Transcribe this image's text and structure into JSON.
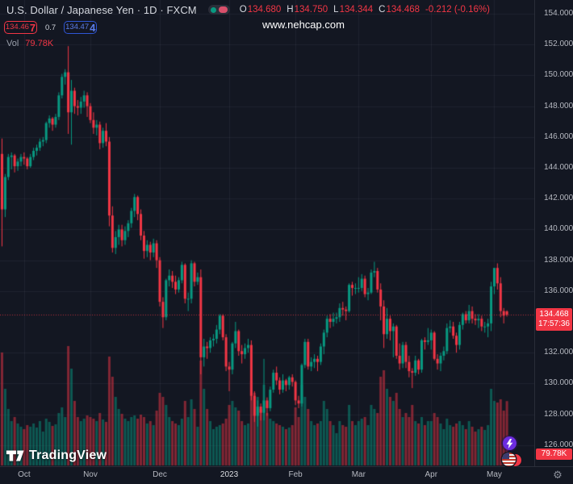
{
  "header": {
    "symbol_title": "U.S. Dollar / Japanese Yen · 1D · FXCM",
    "ohlc": {
      "o_label": "O",
      "o": "134.680",
      "h_label": "H",
      "h": "134.750",
      "l_label": "L",
      "l": "134.344",
      "c_label": "C",
      "c": "134.468",
      "change": "-0.212 (-0.16%)"
    },
    "sell": {
      "main": "134.46",
      "big": "7"
    },
    "spread": "0.7",
    "buy": {
      "main": "134.47",
      "big": "4"
    },
    "vol": {
      "label": "Vol",
      "value": "79.78K"
    }
  },
  "watermark": {
    "text": "www.nehcap.com"
  },
  "price_axis": {
    "last_price_label": "134.468",
    "countdown": "17:57:36",
    "volume_badge": "79.78K"
  },
  "logo": {
    "text": "TradingView"
  },
  "icons": {
    "gear": "⚙",
    "lightning": "lightning-bolt",
    "flag": "us-flag"
  },
  "colors": {
    "background": "#131722",
    "up": "#089981",
    "down": "#f23645",
    "buy_blue": "#3a62d8",
    "purple": "#6c2ce0",
    "grid": "rgba(240,243,250,0.055)",
    "axis_text": "#b6b9c1"
  },
  "chart_data": {
    "type": "candlestick+volume",
    "symbol": "USDJPY",
    "title": "U.S. Dollar / Japanese Yen",
    "timeframe": "1D",
    "exchange": "FXCM",
    "legend_position": "top-left",
    "grid": true,
    "last_price": 134.468,
    "last_change": -0.212,
    "last_change_pct": -0.16,
    "y_ticks": [
      "154.000",
      "152.000",
      "150.000",
      "148.000",
      "146.000",
      "144.000",
      "142.000",
      "140.000",
      "138.000",
      "136.000",
      "132.000",
      "130.000",
      "128.000",
      "126.000"
    ],
    "ylim": [
      125.5,
      154.8
    ],
    "x_ticks": [
      {
        "label": "Oct",
        "index": 7
      },
      {
        "label": "Nov",
        "index": 28
      },
      {
        "label": "Dec",
        "index": 50
      },
      {
        "label": "2023",
        "index": 72,
        "year": true
      },
      {
        "label": "Feb",
        "index": 93
      },
      {
        "label": "Mar",
        "index": 113
      },
      {
        "label": "Apr",
        "index": 136
      },
      {
        "label": "May",
        "index": 156
      }
    ],
    "candles_format": [
      "open",
      "high",
      "low",
      "close",
      "volume_k"
    ],
    "candles": [
      [
        144.9,
        145.9,
        138.9,
        141.3,
        140
      ],
      [
        141.3,
        143.6,
        140.8,
        143.4,
        95
      ],
      [
        143.4,
        144.9,
        143.2,
        144.7,
        70
      ],
      [
        144.7,
        145.0,
        143.9,
        144.8,
        55
      ],
      [
        144.8,
        144.9,
        143.7,
        144.1,
        60
      ],
      [
        144.1,
        144.6,
        143.8,
        144.4,
        52
      ],
      [
        144.4,
        144.9,
        144.1,
        144.7,
        48
      ],
      [
        144.7,
        145.0,
        144.2,
        144.6,
        45
      ],
      [
        144.6,
        144.7,
        143.9,
        144.1,
        50
      ],
      [
        144.1,
        144.9,
        144.0,
        144.7,
        48
      ],
      [
        144.7,
        145.3,
        144.5,
        145.1,
        52
      ],
      [
        145.1,
        145.5,
        144.8,
        145.3,
        47
      ],
      [
        145.3,
        145.9,
        145.1,
        145.7,
        55
      ],
      [
        145.7,
        146.0,
        145.4,
        145.8,
        42
      ],
      [
        145.8,
        147.0,
        145.6,
        146.9,
        58
      ],
      [
        146.9,
        147.4,
        146.6,
        147.2,
        54
      ],
      [
        147.2,
        147.3,
        146.4,
        146.8,
        49
      ],
      [
        146.8,
        147.5,
        146.6,
        147.3,
        51
      ],
      [
        147.3,
        148.9,
        147.1,
        148.7,
        65
      ],
      [
        148.7,
        150.1,
        148.5,
        149.9,
        72
      ],
      [
        149.9,
        150.4,
        149.4,
        150.2,
        60
      ],
      [
        150.2,
        151.9,
        146.2,
        147.6,
        148
      ],
      [
        147.6,
        149.7,
        145.5,
        149.0,
        120
      ],
      [
        149.0,
        149.2,
        147.5,
        148.0,
        80
      ],
      [
        148.0,
        148.4,
        147.4,
        147.9,
        60
      ],
      [
        147.9,
        148.6,
        147.5,
        148.3,
        55
      ],
      [
        148.3,
        149.0,
        147.9,
        148.7,
        58
      ],
      [
        148.7,
        148.9,
        147.3,
        148.0,
        62
      ],
      [
        148.0,
        148.2,
        146.9,
        147.1,
        60
      ],
      [
        147.1,
        147.6,
        146.2,
        146.6,
        58
      ],
      [
        146.6,
        147.1,
        146.1,
        146.8,
        55
      ],
      [
        146.8,
        147.0,
        145.2,
        145.6,
        65
      ],
      [
        145.6,
        146.6,
        145.3,
        146.4,
        57
      ],
      [
        146.4,
        146.9,
        145.4,
        145.7,
        54
      ],
      [
        145.7,
        146.0,
        140.2,
        140.9,
        135
      ],
      [
        140.9,
        141.5,
        138.5,
        138.8,
        110
      ],
      [
        138.8,
        139.9,
        138.4,
        139.5,
        85
      ],
      [
        139.5,
        140.3,
        139.0,
        140.0,
        70
      ],
      [
        140.0,
        140.3,
        138.9,
        139.3,
        64
      ],
      [
        139.3,
        140.2,
        139.0,
        139.9,
        58
      ],
      [
        139.9,
        140.6,
        139.5,
        140.4,
        55
      ],
      [
        140.4,
        141.4,
        140.1,
        141.2,
        60
      ],
      [
        141.2,
        142.3,
        140.8,
        142.1,
        62
      ],
      [
        142.1,
        142.2,
        140.6,
        141.0,
        58
      ],
      [
        141.0,
        141.3,
        139.3,
        139.6,
        63
      ],
      [
        139.6,
        139.9,
        138.1,
        138.6,
        60
      ],
      [
        138.6,
        139.3,
        138.2,
        139.0,
        52
      ],
      [
        139.0,
        139.2,
        138.0,
        138.5,
        55
      ],
      [
        138.5,
        139.4,
        138.2,
        139.1,
        50
      ],
      [
        139.1,
        139.3,
        137.5,
        138.0,
        68
      ],
      [
        138.0,
        138.2,
        135.0,
        135.3,
        90
      ],
      [
        135.3,
        135.6,
        133.6,
        134.3,
        85
      ],
      [
        134.3,
        136.8,
        134.1,
        136.7,
        75
      ],
      [
        136.7,
        137.4,
        136.3,
        137.0,
        60
      ],
      [
        137.0,
        137.3,
        136.2,
        136.6,
        55
      ],
      [
        136.6,
        137.0,
        135.8,
        136.1,
        52
      ],
      [
        136.1,
        136.9,
        135.9,
        136.7,
        50
      ],
      [
        136.7,
        137.9,
        136.5,
        137.7,
        58
      ],
      [
        137.7,
        137.8,
        135.2,
        135.5,
        80
      ],
      [
        135.5,
        135.9,
        134.7,
        135.5,
        60
      ],
      [
        135.5,
        138.0,
        135.2,
        137.8,
        82
      ],
      [
        137.8,
        137.9,
        136.3,
        136.6,
        70
      ],
      [
        136.6,
        137.2,
        136.4,
        136.9,
        48
      ],
      [
        136.9,
        137.4,
        130.6,
        131.7,
        130
      ],
      [
        131.7,
        132.9,
        131.1,
        132.4,
        95
      ],
      [
        132.4,
        132.7,
        131.6,
        132.3,
        70
      ],
      [
        132.3,
        133.0,
        132.0,
        132.8,
        55
      ],
      [
        132.8,
        133.2,
        132.4,
        132.9,
        45
      ],
      [
        132.9,
        133.8,
        132.6,
        133.5,
        48
      ],
      [
        133.5,
        134.5,
        133.2,
        134.4,
        50
      ],
      [
        134.4,
        134.5,
        132.8,
        133.0,
        52
      ],
      [
        133.0,
        133.2,
        130.8,
        131.1,
        58
      ],
      [
        131.1,
        131.4,
        129.5,
        130.9,
        75
      ],
      [
        130.9,
        132.7,
        130.6,
        132.6,
        80
      ],
      [
        132.6,
        134.0,
        132.3,
        133.4,
        72
      ],
      [
        133.4,
        133.5,
        131.8,
        132.1,
        68
      ],
      [
        132.1,
        132.5,
        131.3,
        131.9,
        55
      ],
      [
        131.9,
        132.6,
        131.6,
        132.3,
        50
      ],
      [
        132.3,
        132.9,
        132.0,
        132.5,
        52
      ],
      [
        132.5,
        132.8,
        128.9,
        129.2,
        105
      ],
      [
        129.2,
        129.5,
        127.5,
        127.9,
        90
      ],
      [
        127.9,
        128.9,
        127.2,
        128.5,
        85
      ],
      [
        128.5,
        128.7,
        127.6,
        128.1,
        70
      ],
      [
        128.1,
        131.6,
        127.6,
        128.9,
        100
      ],
      [
        128.9,
        129.1,
        127.9,
        128.4,
        65
      ],
      [
        128.4,
        129.8,
        128.2,
        129.6,
        58
      ],
      [
        129.6,
        130.9,
        129.4,
        130.7,
        55
      ],
      [
        130.7,
        131.1,
        129.9,
        130.2,
        52
      ],
      [
        130.2,
        130.4,
        129.3,
        129.6,
        50
      ],
      [
        129.6,
        130.6,
        129.4,
        130.2,
        48
      ],
      [
        130.2,
        130.3,
        129.5,
        129.9,
        45
      ],
      [
        129.9,
        130.5,
        129.6,
        130.4,
        47
      ],
      [
        130.4,
        130.6,
        129.8,
        130.1,
        50
      ],
      [
        130.1,
        130.2,
        128.6,
        128.9,
        72
      ],
      [
        128.9,
        129.2,
        128.4,
        128.7,
        60
      ],
      [
        128.7,
        131.3,
        128.5,
        131.2,
        100
      ],
      [
        131.2,
        132.9,
        131.0,
        132.7,
        85
      ],
      [
        132.7,
        132.9,
        130.9,
        131.1,
        70
      ],
      [
        131.1,
        131.7,
        130.8,
        131.4,
        55
      ],
      [
        131.4,
        131.9,
        131.0,
        131.6,
        50
      ],
      [
        131.6,
        131.8,
        130.8,
        131.4,
        52
      ],
      [
        131.4,
        132.6,
        131.2,
        132.4,
        55
      ],
      [
        132.4,
        133.5,
        131.9,
        133.3,
        80
      ],
      [
        133.3,
        134.4,
        133.0,
        134.2,
        70
      ],
      [
        134.2,
        134.5,
        133.6,
        134.0,
        55
      ],
      [
        134.0,
        134.6,
        133.7,
        134.2,
        50
      ],
      [
        134.2,
        134.6,
        133.9,
        134.3,
        40
      ],
      [
        134.3,
        135.2,
        134.0,
        134.9,
        55
      ],
      [
        134.9,
        135.3,
        134.4,
        134.8,
        50
      ],
      [
        134.8,
        135.0,
        134.1,
        134.7,
        48
      ],
      [
        134.7,
        136.5,
        134.6,
        136.4,
        75
      ],
      [
        136.4,
        136.6,
        135.7,
        136.2,
        55
      ],
      [
        136.2,
        136.5,
        135.8,
        136.2,
        50
      ],
      [
        136.2,
        136.9,
        135.9,
        136.2,
        55
      ],
      [
        136.2,
        137.1,
        136.0,
        136.8,
        58
      ],
      [
        136.8,
        137.0,
        135.6,
        135.8,
        60
      ],
      [
        135.8,
        136.2,
        135.4,
        135.9,
        50
      ],
      [
        135.9,
        137.4,
        135.8,
        137.2,
        75
      ],
      [
        137.2,
        137.9,
        136.9,
        137.3,
        70
      ],
      [
        137.3,
        137.5,
        135.9,
        136.1,
        65
      ],
      [
        136.1,
        136.5,
        134.1,
        135.0,
        110
      ],
      [
        135.0,
        135.4,
        132.3,
        133.2,
        118
      ],
      [
        133.2,
        134.9,
        132.9,
        134.2,
        95
      ],
      [
        134.2,
        134.4,
        132.8,
        133.4,
        85
      ],
      [
        133.4,
        133.9,
        131.7,
        133.7,
        80
      ],
      [
        133.7,
        133.8,
        131.6,
        131.8,
        90
      ],
      [
        131.8,
        132.6,
        130.9,
        131.3,
        70
      ],
      [
        131.3,
        132.7,
        131.0,
        132.5,
        60
      ],
      [
        132.5,
        132.7,
        131.0,
        131.4,
        65
      ],
      [
        131.4,
        131.8,
        130.4,
        130.8,
        60
      ],
      [
        130.8,
        131.0,
        129.7,
        130.7,
        75
      ],
      [
        130.7,
        131.8,
        130.5,
        131.5,
        55
      ],
      [
        131.5,
        131.6,
        130.6,
        130.9,
        52
      ],
      [
        130.9,
        132.9,
        130.7,
        132.8,
        60
      ],
      [
        132.8,
        133.0,
        132.2,
        132.7,
        50
      ],
      [
        132.7,
        133.6,
        132.5,
        132.8,
        55
      ],
      [
        132.8,
        133.5,
        132.2,
        133.3,
        55
      ],
      [
        133.3,
        133.4,
        131.5,
        131.6,
        65
      ],
      [
        131.6,
        131.9,
        130.9,
        131.3,
        60
      ],
      [
        131.3,
        132.0,
        130.8,
        131.8,
        52
      ],
      [
        131.8,
        132.4,
        131.5,
        132.1,
        45
      ],
      [
        132.1,
        133.9,
        131.9,
        133.6,
        58
      ],
      [
        133.6,
        134.1,
        133.3,
        133.7,
        50
      ],
      [
        133.7,
        134.0,
        132.9,
        133.1,
        48
      ],
      [
        133.1,
        133.3,
        132.0,
        132.5,
        52
      ],
      [
        132.5,
        134.0,
        132.2,
        133.8,
        55
      ],
      [
        133.8,
        134.6,
        133.5,
        134.5,
        50
      ],
      [
        134.5,
        134.7,
        133.9,
        134.1,
        45
      ],
      [
        134.1,
        135.1,
        133.9,
        134.7,
        55
      ],
      [
        134.7,
        135.0,
        133.9,
        134.2,
        48
      ],
      [
        134.2,
        134.5,
        133.8,
        134.1,
        42
      ],
      [
        134.1,
        134.5,
        133.6,
        134.2,
        45
      ],
      [
        134.2,
        134.4,
        133.4,
        133.7,
        48
      ],
      [
        133.7,
        134.0,
        133.3,
        133.7,
        44
      ],
      [
        133.7,
        134.2,
        133.0,
        133.9,
        50
      ],
      [
        133.9,
        136.6,
        133.4,
        136.3,
        95
      ],
      [
        136.3,
        137.5,
        135.8,
        137.5,
        80
      ],
      [
        137.5,
        137.8,
        136.1,
        136.5,
        78
      ],
      [
        136.5,
        136.9,
        134.3,
        134.7,
        82
      ],
      [
        134.7,
        134.9,
        133.9,
        134.4,
        68
      ],
      [
        134.68,
        134.75,
        134.344,
        134.468,
        79.78
      ]
    ]
  }
}
